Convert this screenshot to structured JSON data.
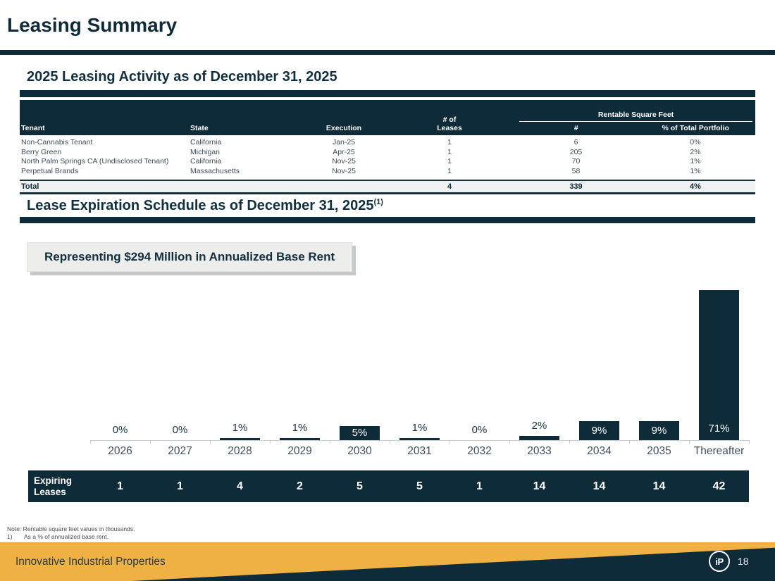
{
  "slide": {
    "title": "Leasing Summary",
    "page_number": "18",
    "footer_brand": "Innovative Industrial Properties",
    "logo_text": "iP"
  },
  "colors": {
    "navy": "#0E2B3A",
    "gold": "#F0B144",
    "callout_bg": "#EDEEEC",
    "total_row_bg": "#EFF1F3"
  },
  "section1": {
    "heading": "2025 Leasing Activity as of December 31, 2025",
    "table": {
      "col_tenant": "Tenant",
      "col_state": "State",
      "col_execution": "Execution",
      "col_leases_line1": "# of",
      "col_leases_line2": "Leases",
      "group_rsf": "Rentable Square Feet",
      "col_rsf_num": "#",
      "col_rsf_pct": "% of Total Portfolio",
      "rows": [
        {
          "tenant": "Non-Cannabis Tenant",
          "state": "California",
          "execution": "Jan-25",
          "leases": "1",
          "rsf": "6",
          "pct": "0%"
        },
        {
          "tenant": "Berry Green",
          "state": "Michigan",
          "execution": "Apr-25",
          "leases": "1",
          "rsf": "205",
          "pct": "2%"
        },
        {
          "tenant": "North Palm Springs CA (Undisclosed Tenant)",
          "state": "California",
          "execution": "Nov-25",
          "leases": "1",
          "rsf": "70",
          "pct": "1%"
        },
        {
          "tenant": "Perpetual Brands",
          "state": "Massachusetts",
          "execution": "Nov-25",
          "leases": "1",
          "rsf": "58",
          "pct": "1%"
        }
      ],
      "total": {
        "label": "Total",
        "leases": "4",
        "rsf": "339",
        "pct": "4%"
      }
    }
  },
  "section2": {
    "heading": "Lease Expiration Schedule as of December 31, 2025",
    "heading_superscript": "(1)",
    "callout": "Representing $294 Million in Annualized Base Rent"
  },
  "chart_data": {
    "type": "bar",
    "title": "Lease Expiration Schedule as of December 31, 2025",
    "categories": [
      "2026",
      "2027",
      "2028",
      "2029",
      "2030",
      "2031",
      "2032",
      "2033",
      "2034",
      "2035",
      "Thereafter"
    ],
    "values": [
      0,
      0,
      1,
      1,
      5,
      1,
      0,
      2,
      9,
      9,
      71
    ],
    "value_labels": [
      "0%",
      "0%",
      "1%",
      "1%",
      "5%",
      "1%",
      "0%",
      "2%",
      "9%",
      "9%",
      "71%"
    ],
    "unit": "% of annualized base rent",
    "ylim": [
      0,
      75
    ],
    "grid": false,
    "legend": false,
    "bar_color": "#0E2B3A",
    "expiring_leases_label": "Expiring Leases",
    "expiring_leases": [
      "1",
      "1",
      "4",
      "2",
      "5",
      "5",
      "1",
      "14",
      "14",
      "14",
      "42"
    ]
  },
  "notes": {
    "line1": "Note: Rentable square feet values in thousands.",
    "line2_marker": "1)",
    "line2_text": "As a % of annualized base rent."
  }
}
